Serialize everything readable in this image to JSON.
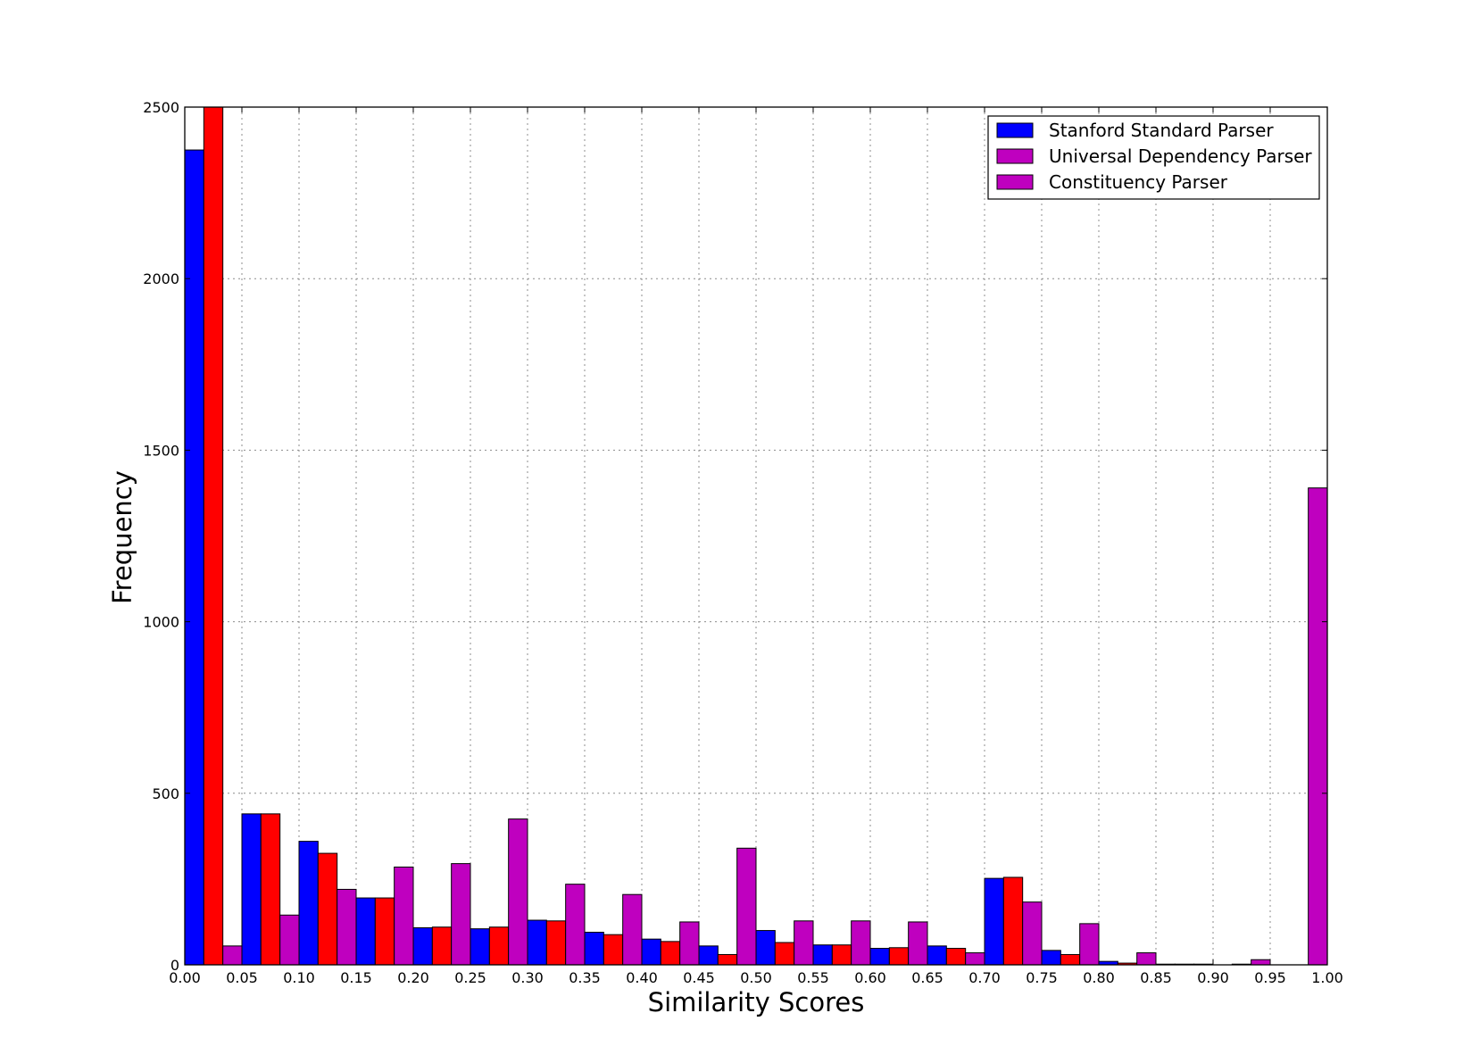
{
  "chart_data": {
    "type": "bar",
    "xlabel": "Similarity Scores",
    "ylabel": "Frequency",
    "xlim": [
      0,
      1
    ],
    "ylim": [
      0,
      2500
    ],
    "grid": true,
    "legend_placement": "top-right",
    "x_ticks": [
      "0.00",
      "0.05",
      "0.10",
      "0.15",
      "0.20",
      "0.25",
      "0.30",
      "0.35",
      "0.40",
      "0.45",
      "0.50",
      "0.55",
      "0.60",
      "0.65",
      "0.70",
      "0.75",
      "0.80",
      "0.85",
      "0.90",
      "0.95",
      "1.00"
    ],
    "y_ticks": [
      "0",
      "500",
      "1000",
      "1500",
      "2000",
      "2500"
    ],
    "bin_edges": [
      0.0,
      0.05,
      0.1,
      0.15,
      0.2,
      0.25,
      0.3,
      0.35,
      0.4,
      0.45,
      0.5,
      0.55,
      0.6,
      0.65,
      0.7,
      0.75,
      0.8,
      0.85,
      0.9,
      0.95,
      1.0
    ],
    "series": [
      {
        "name": "Stanford Standard Parser",
        "color": "#0000ff",
        "values": [
          2375,
          440,
          360,
          195,
          108,
          105,
          130,
          95,
          75,
          55,
          100,
          58,
          48,
          55,
          252,
          42,
          10,
          2,
          0,
          0
        ]
      },
      {
        "name": "Universal Dependency Parser",
        "color": "#ff0000",
        "legend_color": "#bf00bf",
        "values": [
          2500,
          440,
          325,
          195,
          110,
          110,
          128,
          88,
          68,
          30,
          65,
          58,
          50,
          48,
          255,
          30,
          5,
          2,
          2,
          0
        ]
      },
      {
        "name": "Constituency Parser",
        "color": "#bf00bf",
        "values": [
          55,
          145,
          220,
          285,
          295,
          425,
          235,
          205,
          125,
          340,
          128,
          128,
          125,
          35,
          183,
          120,
          35,
          2,
          15,
          1390
        ]
      }
    ]
  }
}
